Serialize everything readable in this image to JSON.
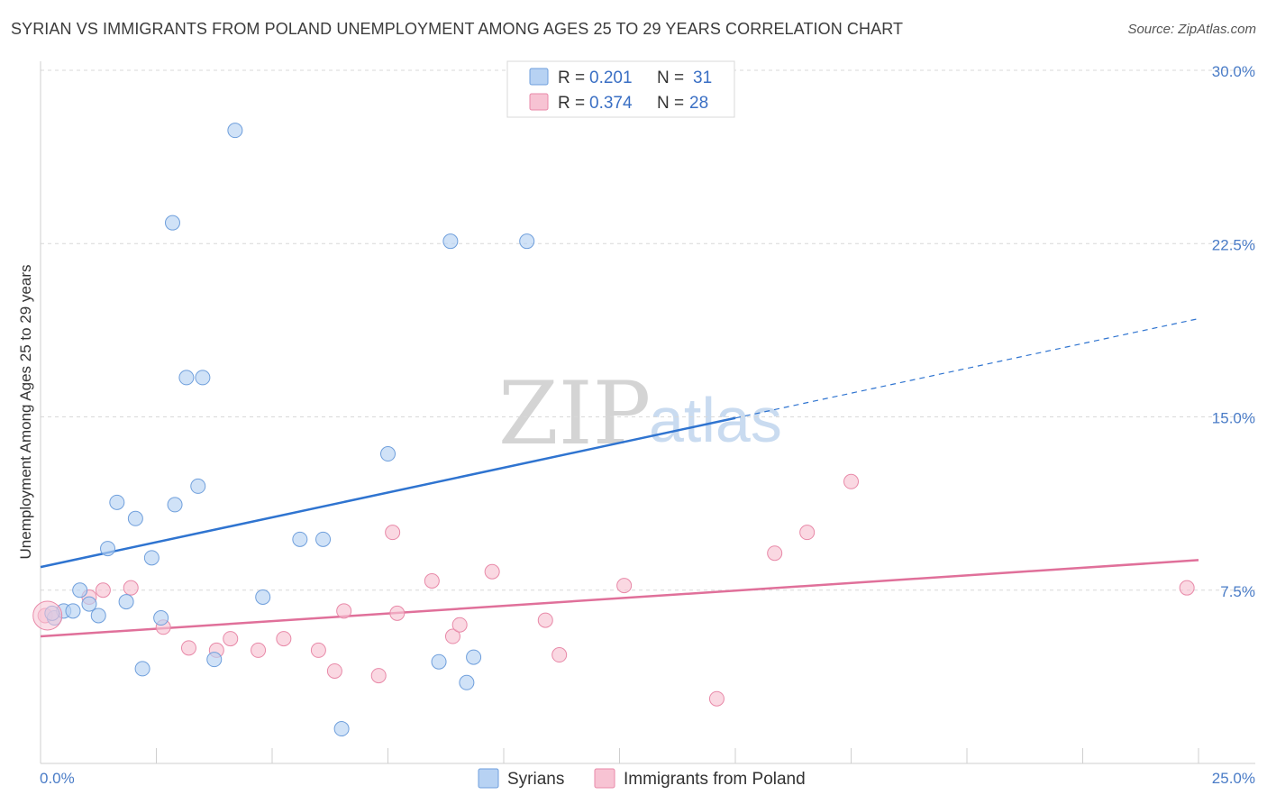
{
  "header": {
    "title": "SYRIAN VS IMMIGRANTS FROM POLAND UNEMPLOYMENT AMONG AGES 25 TO 29 YEARS CORRELATION CHART",
    "source": "Source: ZipAtlas.com"
  },
  "watermark": {
    "zip": "ZIP",
    "atlas": "atlas"
  },
  "colors": {
    "syrians_fill": "#b7d2f3",
    "syrians_stroke": "#6f9fdc",
    "syrians_line": "#2f74d0",
    "poland_fill": "#f7c3d3",
    "poland_stroke": "#e889a8",
    "poland_line": "#e0709a",
    "grid": "#d8d8d8",
    "tick_text": "#4a7cc7"
  },
  "legend": {
    "rows": [
      {
        "r_label": "R =",
        "r_value": "0.201",
        "n_label": "N =",
        "n_value": "31"
      },
      {
        "r_label": "R =",
        "r_value": "0.374",
        "n_label": "N =",
        "n_value": "28"
      }
    ]
  },
  "chart_data": {
    "type": "scatter",
    "title": "SYRIAN VS IMMIGRANTS FROM POLAND UNEMPLOYMENT AMONG AGES 25 TO 29 YEARS CORRELATION CHART",
    "xlabel": "",
    "ylabel": "Unemployment Among Ages 25 to 29 years",
    "xlim": [
      0,
      25
    ],
    "ylim": [
      0,
      30
    ],
    "x_tick_labels": [
      "0.0%",
      "25.0%"
    ],
    "y_ticks": [
      7.5,
      15.0,
      22.5,
      30.0
    ],
    "y_tick_labels": [
      "7.5%",
      "15.0%",
      "22.5%",
      "30.0%"
    ],
    "legend_position": "top-center",
    "series": [
      {
        "name": "Syrians",
        "r": 0.201,
        "n": 31,
        "points": [
          [
            0.3,
            6.3
          ],
          [
            0.5,
            6.6
          ],
          [
            0.7,
            6.6
          ],
          [
            0.85,
            7.5
          ],
          [
            1.05,
            6.9
          ],
          [
            1.25,
            6.4
          ],
          [
            1.45,
            9.3
          ],
          [
            1.65,
            11.3
          ],
          [
            1.85,
            7.0
          ],
          [
            2.05,
            10.6
          ],
          [
            2.2,
            4.1
          ],
          [
            2.4,
            8.9
          ],
          [
            2.6,
            6.3
          ],
          [
            2.85,
            23.4
          ],
          [
            2.9,
            11.2
          ],
          [
            3.15,
            16.7
          ],
          [
            3.4,
            12.0
          ],
          [
            3.5,
            16.7
          ],
          [
            3.75,
            4.5
          ],
          [
            4.2,
            27.4
          ],
          [
            4.8,
            7.2
          ],
          [
            5.6,
            9.7
          ],
          [
            6.1,
            9.7
          ],
          [
            6.5,
            1.5
          ],
          [
            7.5,
            13.4
          ],
          [
            8.6,
            4.4
          ],
          [
            8.85,
            22.6
          ],
          [
            9.2,
            3.5
          ],
          [
            9.35,
            4.6
          ],
          [
            10.5,
            22.6
          ],
          [
            0.25,
            6.5
          ]
        ],
        "trend": {
          "x_solid": [
            0,
            15.0
          ],
          "x_dashed": [
            15.0,
            25.0
          ],
          "intercept": 8.5,
          "slope": 0.43
        }
      },
      {
        "name": "Immigrants from Poland",
        "r": 0.374,
        "n": 28,
        "points": [
          [
            0.1,
            6.4
          ],
          [
            1.05,
            7.2
          ],
          [
            1.35,
            7.5
          ],
          [
            1.95,
            7.6
          ],
          [
            2.65,
            5.9
          ],
          [
            3.2,
            5.0
          ],
          [
            3.8,
            4.9
          ],
          [
            4.1,
            5.4
          ],
          [
            4.7,
            4.9
          ],
          [
            5.25,
            5.4
          ],
          [
            6.0,
            4.9
          ],
          [
            6.35,
            4.0
          ],
          [
            6.55,
            6.6
          ],
          [
            7.3,
            3.8
          ],
          [
            7.6,
            10.0
          ],
          [
            7.7,
            6.5
          ],
          [
            8.45,
            7.9
          ],
          [
            8.9,
            5.5
          ],
          [
            9.05,
            6.0
          ],
          [
            9.75,
            8.3
          ],
          [
            10.9,
            6.2
          ],
          [
            11.2,
            4.7
          ],
          [
            12.6,
            7.7
          ],
          [
            14.6,
            2.8
          ],
          [
            15.85,
            9.1
          ],
          [
            16.55,
            10.0
          ],
          [
            17.5,
            12.2
          ],
          [
            24.75,
            7.6
          ]
        ],
        "trend": {
          "x_solid": [
            0,
            25.0
          ],
          "intercept": 5.5,
          "slope": 0.132
        }
      }
    ]
  },
  "bottom_legend": {
    "items": [
      {
        "label": "Syrians"
      },
      {
        "label": "Immigrants from Poland"
      }
    ]
  }
}
